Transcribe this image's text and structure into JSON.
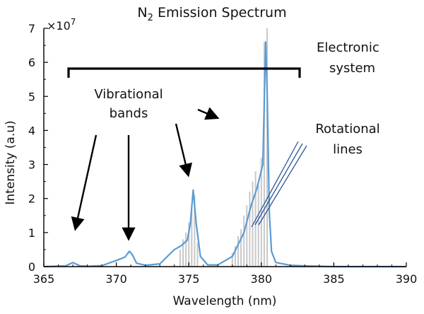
{
  "chart_data": {
    "type": "line",
    "title_main": "N",
    "title_sub": "2",
    "title_rest": " Emission Spectrum",
    "xlabel": "Wavelength (nm)",
    "ylabel": "Intensity (a.u)",
    "y_multiplier": "×10",
    "y_multiplier_exp": "7",
    "xlim": [
      365,
      390
    ],
    "ylim": [
      0,
      7
    ],
    "x_ticks": [
      365,
      370,
      375,
      380,
      385,
      390
    ],
    "y_ticks": [
      0,
      1,
      2,
      3,
      4,
      5,
      6,
      7
    ],
    "grid": false,
    "colors": {
      "envelope": "#5b9bd5",
      "lines": "#c8c8c8",
      "annotation_lines": "#2e5597"
    },
    "series": [
      {
        "values_note": "envelope",
        "x": [
          365,
          366.5,
          367,
          367.5,
          368,
          369,
          370,
          370.6,
          370.9,
          371.1,
          371.4,
          372,
          373,
          374,
          374.5,
          374.9,
          375.1,
          375.3,
          375.5,
          375.8,
          376.3,
          377,
          378,
          378.8,
          379.3,
          379.7,
          380.1,
          380.3,
          380.4,
          380.55,
          380.7,
          381,
          382,
          383,
          385,
          390
        ],
        "y": [
          0.0,
          0.02,
          0.12,
          0.02,
          0.01,
          0.03,
          0.18,
          0.28,
          0.45,
          0.35,
          0.1,
          0.04,
          0.08,
          0.5,
          0.62,
          0.78,
          1.25,
          2.25,
          1.3,
          0.3,
          0.05,
          0.05,
          0.3,
          1.0,
          1.8,
          2.3,
          3.0,
          6.6,
          5.2,
          1.6,
          0.45,
          0.12,
          0.04,
          0.02,
          0.0,
          0.0
        ]
      },
      {
        "values_note": "rotational lines",
        "x": [
          374.4,
          374.6,
          374.8,
          375.0,
          375.2,
          375.4,
          375.6,
          378.0,
          378.2,
          378.4,
          378.6,
          378.8,
          379.0,
          379.2,
          379.4,
          379.6,
          379.8,
          380.0,
          380.2,
          380.4
        ],
        "y": [
          0.5,
          0.8,
          1.0,
          1.3,
          1.8,
          2.1,
          0.7,
          0.4,
          0.6,
          0.9,
          1.1,
          1.5,
          1.8,
          2.2,
          2.5,
          2.8,
          2.4,
          3.2,
          6.6,
          7.0
        ]
      }
    ],
    "annotations": {
      "electronic_line1": "Electronic",
      "electronic_line2": "system",
      "vibrational_line1": "Vibrational",
      "vibrational_line2": "bands",
      "rotational_line1": "Rotational",
      "rotational_line2": "lines"
    }
  }
}
